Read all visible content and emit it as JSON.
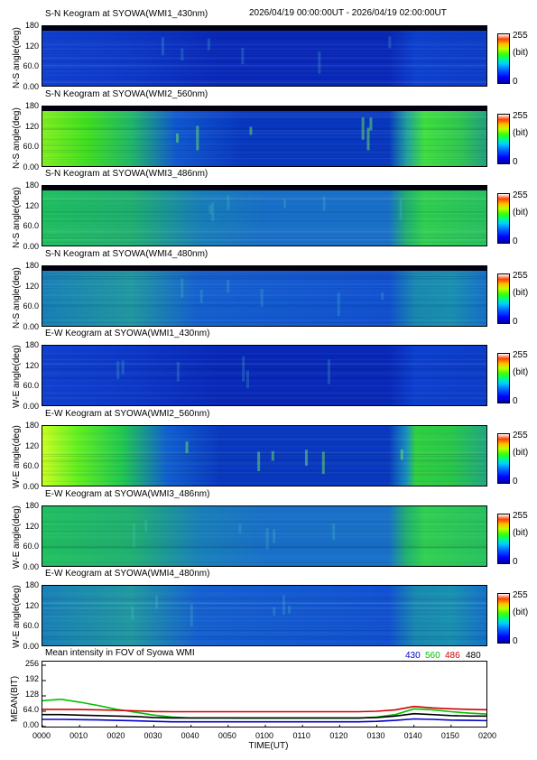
{
  "header": {
    "time_range": "2026/04/19 00:00:00UT - 2026/04/19 02:00:00UT"
  },
  "colorbar": {
    "max": "255",
    "unit": "(bit)",
    "min": "0"
  },
  "keograms": [
    {
      "title": "S-N Keogram at SYOWA(WMI1_430nm)",
      "ylabel": "N-S angle(deg)",
      "ticks": [
        "180",
        "120",
        "60.0",
        "0.00"
      ],
      "intensity": "low"
    },
    {
      "title": "S-N Keogram at SYOWA(WMI2_560nm)",
      "ylabel": "N-S angle(deg)",
      "ticks": [
        "180",
        "120",
        "60.0",
        "0.00"
      ],
      "intensity": "high"
    },
    {
      "title": "S-N Keogram at SYOWA(WMI3_486nm)",
      "ylabel": "N-S angle(deg)",
      "ticks": [
        "180",
        "120",
        "60.0",
        "0.00"
      ],
      "intensity": "mid"
    },
    {
      "title": "S-N Keogram at SYOWA(WMI4_480nm)",
      "ylabel": "N-S angle(deg)",
      "ticks": [
        "180",
        "120",
        "60.0",
        "0.00"
      ],
      "intensity": "midlow"
    },
    {
      "title": "E-W Keogram at SYOWA(WMI1_430nm)",
      "ylabel": "W-E angle(deg)",
      "ticks": [
        "180",
        "120",
        "60.0",
        "0.00"
      ],
      "intensity": "low"
    },
    {
      "title": "E-W Keogram at SYOWA(WMI2_560nm)",
      "ylabel": "W-E angle(deg)",
      "ticks": [
        "180",
        "120",
        "60.0",
        "0.00"
      ],
      "intensity": "high"
    },
    {
      "title": "E-W Keogram at SYOWA(WMI3_486nm)",
      "ylabel": "W-E angle(deg)",
      "ticks": [
        "180",
        "120",
        "60.0",
        "0.00"
      ],
      "intensity": "mid"
    },
    {
      "title": "E-W Keogram at SYOWA(WMI4_480nm)",
      "ylabel": "W-E angle(deg)",
      "ticks": [
        "180",
        "120",
        "60.0",
        "0.00"
      ],
      "intensity": "midlow"
    }
  ],
  "chart_data": {
    "type": "line",
    "title": "Mean intensity in FOV of Syowa WMI",
    "xlabel": "TIME(UT)",
    "ylabel": "MEAN(BIT)",
    "x_ticks": [
      "0000",
      "0010",
      "0020",
      "0030",
      "0040",
      "0050",
      "0100",
      "0110",
      "0120",
      "0130",
      "0140",
      "0150",
      "0200"
    ],
    "y_ticks": [
      "256",
      "192",
      "128",
      "64.0",
      "0.00"
    ],
    "ylim": [
      0,
      256
    ],
    "xlim_minutes": [
      0,
      120
    ],
    "x_minutes": [
      0,
      5,
      10,
      15,
      20,
      25,
      30,
      35,
      40,
      45,
      50,
      55,
      60,
      65,
      70,
      75,
      80,
      85,
      90,
      95,
      100,
      105,
      110,
      115,
      120
    ],
    "series": [
      {
        "name": "430",
        "color": "#0000cc",
        "values": [
          30,
          30,
          29,
          28,
          26,
          24,
          22,
          20,
          20,
          20,
          20,
          20,
          20,
          20,
          20,
          20,
          20,
          20,
          22,
          26,
          32,
          30,
          27,
          26,
          25
        ]
      },
      {
        "name": "560",
        "color": "#00c000",
        "values": [
          108,
          114,
          102,
          88,
          72,
          60,
          48,
          40,
          36,
          36,
          36,
          35,
          35,
          35,
          35,
          35,
          35,
          35,
          40,
          50,
          74,
          70,
          62,
          56,
          52
        ]
      },
      {
        "name": "486",
        "color": "#d00000",
        "values": [
          72,
          72,
          71,
          70,
          68,
          66,
          63,
          62,
          62,
          62,
          62,
          62,
          62,
          62,
          62,
          62,
          62,
          62,
          64,
          70,
          84,
          78,
          74,
          72,
          70
        ]
      },
      {
        "name": "480",
        "color": "#000000",
        "values": [
          50,
          50,
          48,
          46,
          44,
          42,
          38,
          36,
          36,
          36,
          36,
          36,
          36,
          36,
          36,
          36,
          36,
          36,
          38,
          44,
          54,
          50,
          46,
          44,
          44
        ]
      }
    ]
  }
}
